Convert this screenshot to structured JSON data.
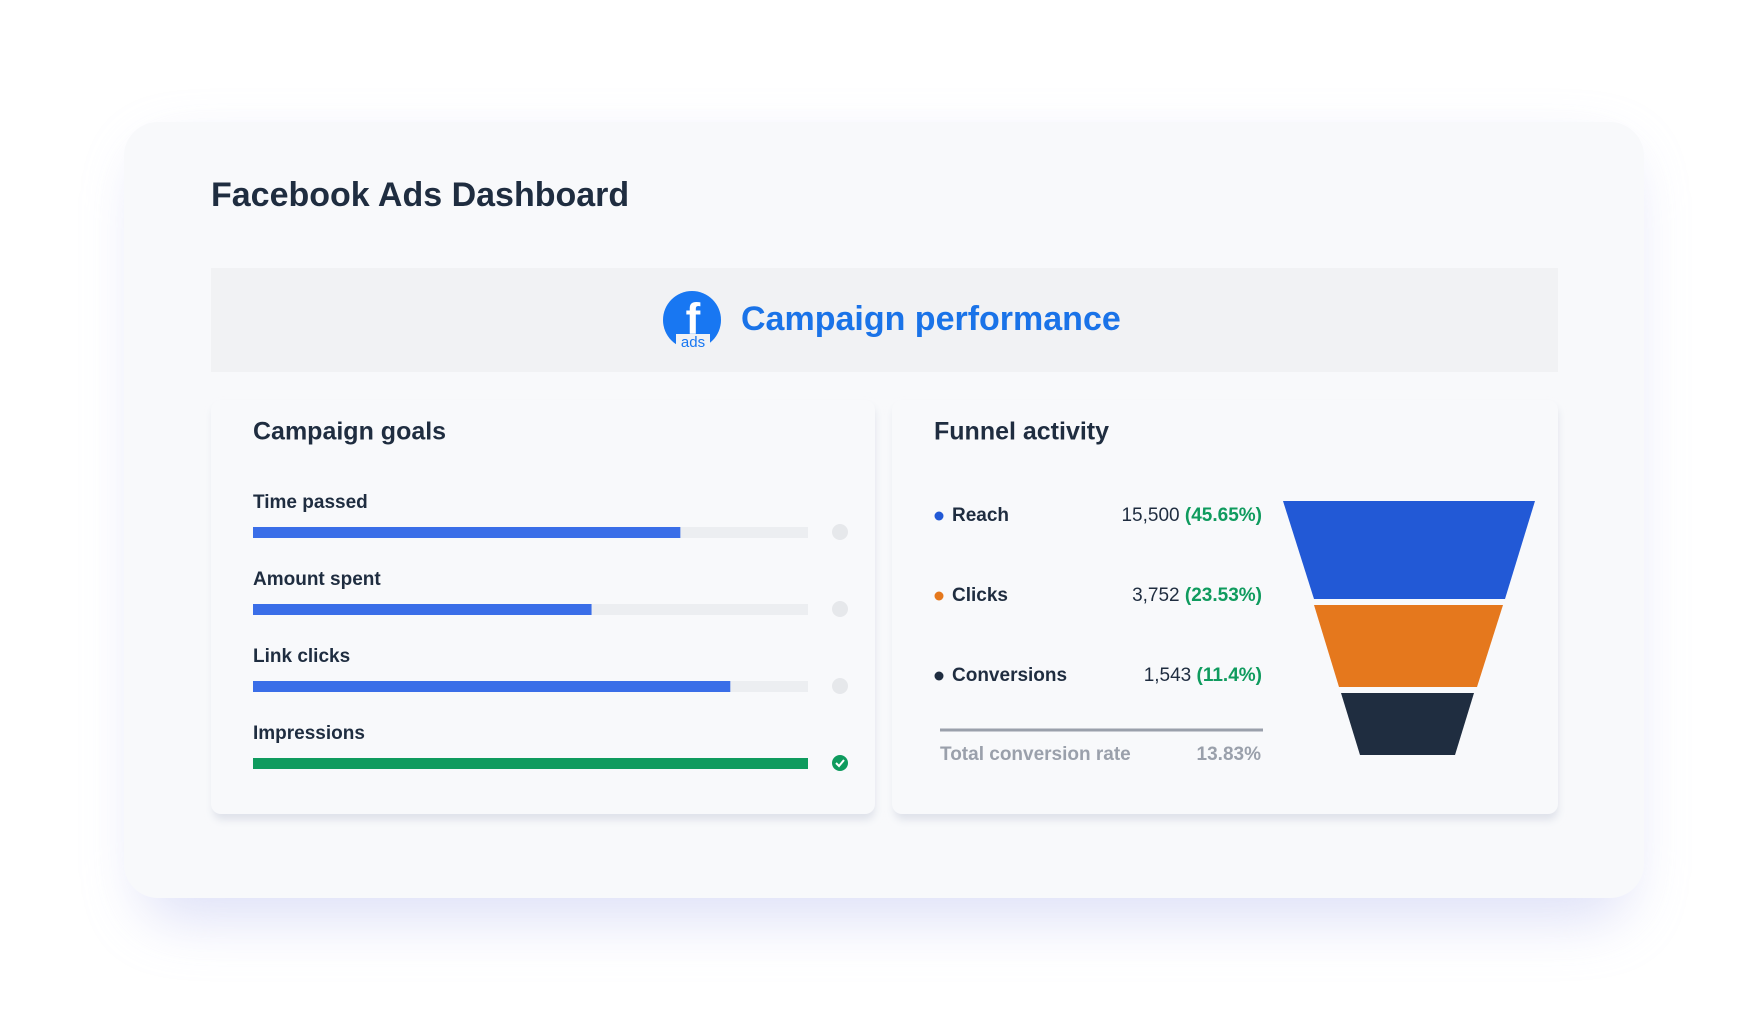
{
  "header": {
    "title": "Facebook Ads Dashboard"
  },
  "banner": {
    "logo_text": "ads",
    "title": "Campaign performance"
  },
  "goals": {
    "title": "Campaign goals",
    "items": [
      {
        "label": "Time passed",
        "progress": 77,
        "done": false
      },
      {
        "label": "Amount spent",
        "progress": 61,
        "done": false
      },
      {
        "label": "Link clicks",
        "progress": 86,
        "done": false
      },
      {
        "label": "Impressions",
        "progress": 100,
        "done": true
      }
    ]
  },
  "funnel": {
    "title": "Funnel activity",
    "items": [
      {
        "label": "Reach",
        "value": "15,500",
        "share": "(45.65%)",
        "color": "#2259d6"
      },
      {
        "label": "Clicks",
        "value": "3,752",
        "share": "(23.53%)",
        "color": "#e5781d"
      },
      {
        "label": "Conversions",
        "value": "1,543",
        "share": "(11.4%)",
        "color": "#1f2d40"
      }
    ],
    "total_label": "Total conversion rate",
    "total_value": "13.83%"
  }
}
